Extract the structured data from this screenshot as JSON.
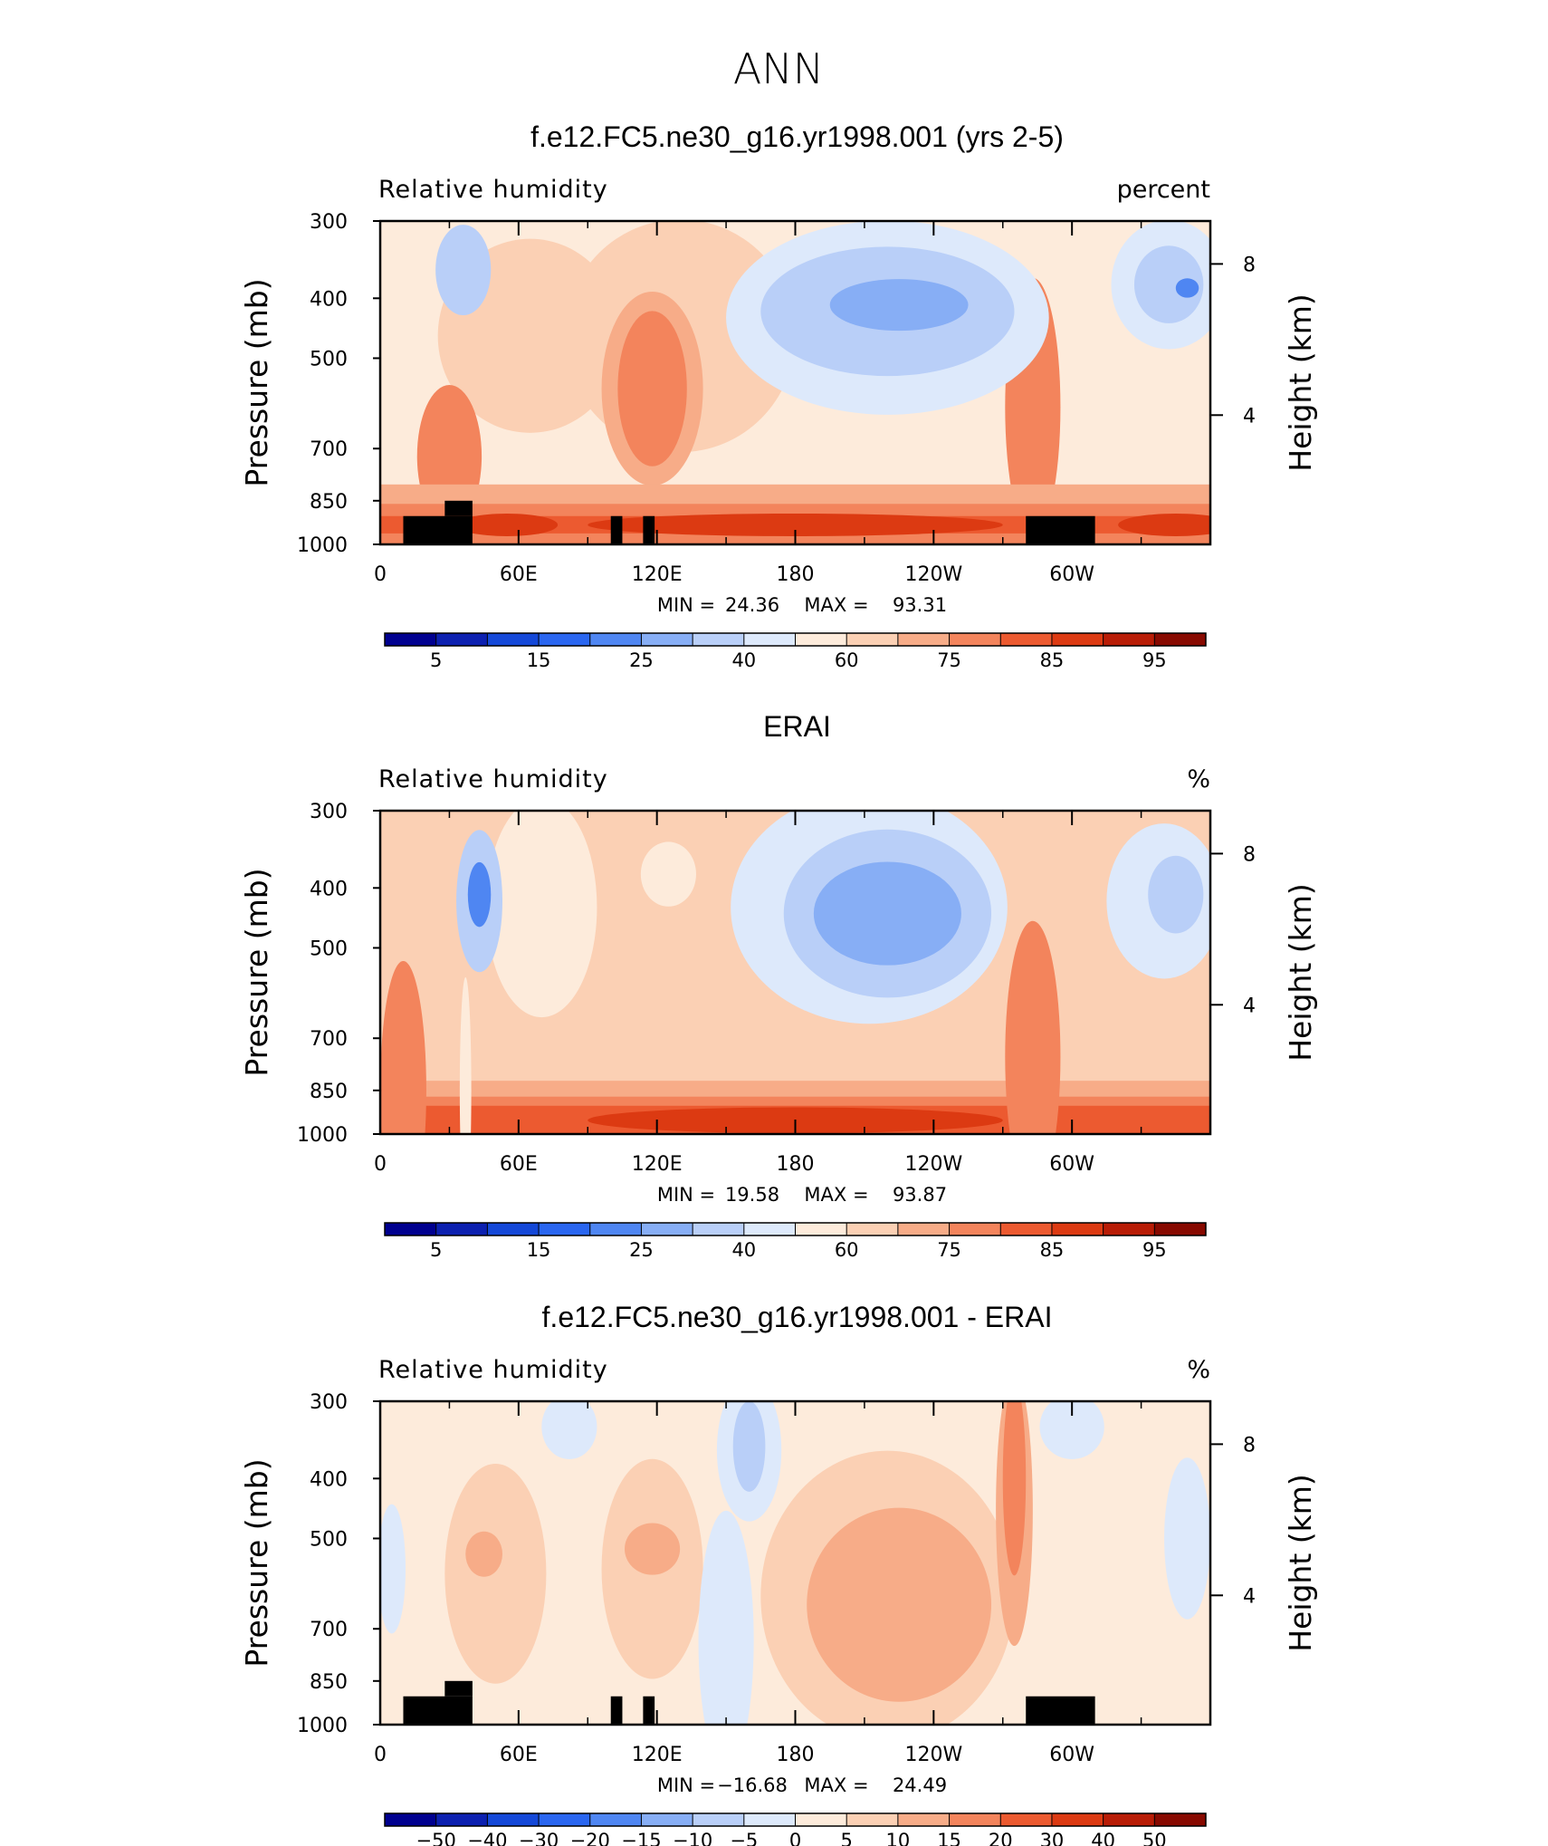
{
  "figure": {
    "title": "ANN",
    "colors": {
      "land_mask": "#000000",
      "absolute_levels": [
        "#00008f",
        "#0c20b0",
        "#1448d8",
        "#2a66f0",
        "#4f86f2",
        "#87aef5",
        "#b9cff8",
        "#dde9fb",
        "#fdebdb",
        "#fbd0b4",
        "#f7ac88",
        "#f3845c",
        "#ec5a30",
        "#dc3a12",
        "#b81c06",
        "#870900"
      ],
      "difference_levels": [
        "#00008f",
        "#0c20b0",
        "#1448d8",
        "#2a66f0",
        "#4f86f2",
        "#87aef5",
        "#b9cff8",
        "#dde9fb",
        "#fdebdb",
        "#fbd0b4",
        "#f7ac88",
        "#f3845c",
        "#ec5a30",
        "#dc3a12",
        "#b81c06",
        "#870900"
      ]
    }
  },
  "chart_data": [
    {
      "type": "heatmap",
      "title": "f.e12.FC5.ne30_g16.yr1998.001 (yrs 2-5)",
      "left_label": "Relative humidity",
      "units": "percent",
      "ylabel": "Pressure (mb)",
      "ylabel_right": "Height (km)",
      "yticks": [
        300,
        400,
        500,
        700,
        850,
        1000
      ],
      "yticks_right": [
        8,
        4
      ],
      "xticks": [
        "0",
        "60E",
        "120E",
        "180",
        "120W",
        "60W"
      ],
      "xlim": [
        0,
        360
      ],
      "ylim": [
        1000,
        300
      ],
      "stats": {
        "min_label": "MIN =",
        "min": "24.36",
        "max_label": "MAX =",
        "max": "93.31"
      },
      "colorbar": {
        "labels": [
          "5",
          "15",
          "25",
          "40",
          "60",
          "75",
          "85",
          "95"
        ],
        "levels": [
          5,
          10,
          15,
          20,
          25,
          30,
          40,
          50,
          60,
          65,
          75,
          80,
          85,
          90,
          95
        ]
      },
      "land": [
        [
          10,
          1000,
          900
        ],
        [
          28,
          900,
          850
        ],
        [
          100,
          1000,
          900
        ],
        [
          114,
          1000,
          900
        ],
        [
          280,
          1000,
          900
        ]
      ]
    },
    {
      "type": "heatmap",
      "title": "ERAI",
      "left_label": "Relative humidity",
      "units": "%",
      "ylabel": "Pressure (mb)",
      "ylabel_right": "Height (km)",
      "yticks": [
        300,
        400,
        500,
        700,
        850,
        1000
      ],
      "yticks_right": [
        8,
        4
      ],
      "xticks": [
        "0",
        "60E",
        "120E",
        "180",
        "120W",
        "60W"
      ],
      "xlim": [
        0,
        360
      ],
      "ylim": [
        1000,
        300
      ],
      "stats": {
        "min_label": "MIN =",
        "min": "19.58",
        "max_label": "MAX =",
        "max": "93.87"
      },
      "colorbar": {
        "labels": [
          "5",
          "15",
          "25",
          "40",
          "60",
          "75",
          "85",
          "95"
        ],
        "levels": [
          5,
          10,
          15,
          20,
          25,
          30,
          40,
          50,
          60,
          65,
          75,
          80,
          85,
          90,
          95
        ]
      },
      "land": []
    },
    {
      "type": "heatmap",
      "title": "f.e12.FC5.ne30_g16.yr1998.001 - ERAI",
      "left_label": "Relative humidity",
      "units": "%",
      "ylabel": "Pressure (mb)",
      "ylabel_right": "Height (km)",
      "yticks": [
        300,
        400,
        500,
        700,
        850,
        1000
      ],
      "yticks_right": [
        8,
        4
      ],
      "xticks": [
        "0",
        "60E",
        "120E",
        "180",
        "120W",
        "60W"
      ],
      "xlim": [
        0,
        360
      ],
      "ylim": [
        1000,
        300
      ],
      "stats": {
        "min_label": "MIN =",
        "min": "−16.68",
        "max_label": "MAX =",
        "max": "24.49"
      },
      "colorbar": {
        "labels": [
          "−50",
          "−40",
          "−30",
          "−20",
          "−15",
          "−10",
          "−5",
          "0",
          "5",
          "10",
          "15",
          "20",
          "30",
          "40",
          "50"
        ],
        "levels": [
          -50,
          -40,
          -30,
          -20,
          -15,
          -10,
          -5,
          0,
          5,
          10,
          15,
          20,
          30,
          40,
          50
        ]
      },
      "land": [
        [
          10,
          1000,
          900
        ],
        [
          28,
          900,
          850
        ],
        [
          100,
          1000,
          900
        ],
        [
          114,
          1000,
          900
        ],
        [
          280,
          1000,
          900
        ]
      ]
    }
  ]
}
